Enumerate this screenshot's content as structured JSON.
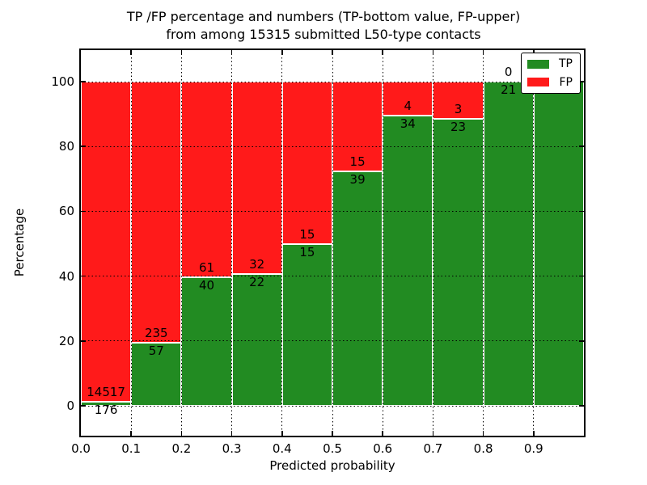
{
  "title": {
    "line1": "TP /FP percentage and numbers (TP-bottom value, FP-upper)",
    "line2": "from among 15315 submitted L50-type contacts"
  },
  "axes": {
    "xlabel": "Predicted probability",
    "ylabel": "Percentage",
    "x_tick_labels": [
      "0.0",
      "0.1",
      "0.2",
      "0.3",
      "0.4",
      "0.5",
      "0.6",
      "0.7",
      "0.8",
      "0.9"
    ],
    "y_tick_labels": [
      "0",
      "20",
      "40",
      "60",
      "80",
      "100"
    ],
    "y_tick_values": [
      0,
      20,
      40,
      60,
      80,
      100
    ]
  },
  "legend": {
    "items": [
      {
        "label": "TP",
        "color": "#228B22"
      },
      {
        "label": "FP",
        "color": "#FF1A1A"
      }
    ]
  },
  "chart_data": {
    "type": "bar",
    "stacked": true,
    "normalized_to_percent": true,
    "title": "TP /FP percentage and numbers (TP-bottom value, FP-upper) from among 15315 submitted L50-type contacts",
    "xlabel": "Predicted probability",
    "ylabel": "Percentage",
    "bin_edges": [
      0.0,
      0.1,
      0.2,
      0.3,
      0.4,
      0.5,
      0.6,
      0.7,
      0.8,
      0.9,
      1.0
    ],
    "categories": [
      "0.0-0.1",
      "0.1-0.2",
      "0.2-0.3",
      "0.3-0.4",
      "0.4-0.5",
      "0.5-0.6",
      "0.6-0.7",
      "0.7-0.8",
      "0.8-0.9",
      "0.9-1.0"
    ],
    "series": [
      {
        "name": "TP",
        "color": "#228B22",
        "counts": [
          176,
          57,
          40,
          22,
          15,
          39,
          34,
          23,
          21,
          6
        ],
        "display_labels": [
          "176",
          "57",
          "40",
          "22",
          "15",
          "39",
          "34",
          "23",
          "21",
          "6"
        ]
      },
      {
        "name": "FP",
        "color": "#FF1A1A",
        "counts": [
          14517,
          235,
          61,
          32,
          15,
          15,
          4,
          3,
          0,
          0
        ],
        "display_labels": [
          "14517",
          "235",
          "61",
          "32",
          "15",
          "15",
          "4",
          "3",
          "0",
          "0"
        ]
      }
    ],
    "tp_percent": [
      1.2,
      19.5,
      39.6,
      40.7,
      50.0,
      72.2,
      89.5,
      88.5,
      100.0,
      100.0
    ],
    "total_submitted": 15315,
    "xlim": [
      0.0,
      1.0
    ],
    "ylim": [
      -9.7,
      109.7
    ],
    "grid": true,
    "grid_style": "dotted",
    "legend_position": "upper right"
  }
}
